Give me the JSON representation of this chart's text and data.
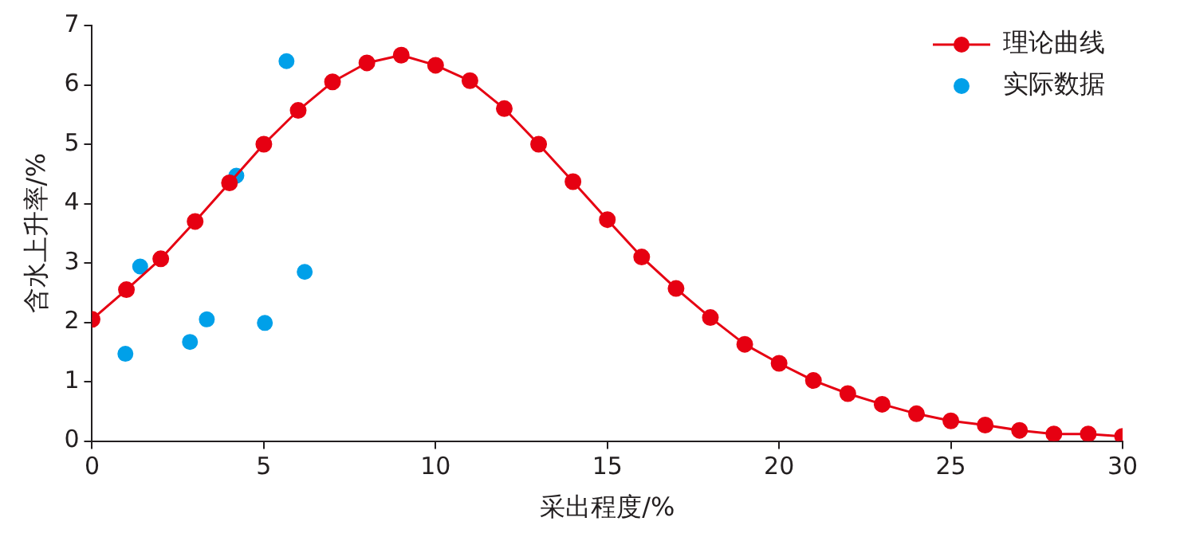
{
  "chart_data": {
    "type": "line",
    "xlabel": "采出程度/%",
    "ylabel": "含水上升率/%",
    "xlim": [
      0,
      30
    ],
    "ylim": [
      0,
      7
    ],
    "xticks": [
      0,
      5,
      10,
      15,
      20,
      25,
      30
    ],
    "yticks": [
      0,
      1,
      2,
      3,
      4,
      5,
      6,
      7
    ],
    "grid": false,
    "legend": "top right",
    "marker": "circle",
    "series": [
      {
        "name": "理论曲线",
        "line_style": "solid",
        "color": "#e60012",
        "x": [
          0,
          1,
          2,
          3,
          4,
          5,
          6,
          7,
          8,
          9,
          10,
          11,
          12,
          13,
          14,
          15,
          16,
          17,
          18,
          19,
          20,
          21,
          22,
          23,
          24,
          25,
          26,
          27,
          28,
          29,
          30
        ],
        "values": [
          2.05,
          2.55,
          3.07,
          3.7,
          4.35,
          5.0,
          5.57,
          6.05,
          6.37,
          6.5,
          6.33,
          6.07,
          5.6,
          5.0,
          4.37,
          3.73,
          3.1,
          2.57,
          2.08,
          1.63,
          1.31,
          1.02,
          0.8,
          0.62,
          0.46,
          0.34,
          0.27,
          0.18,
          0.12,
          0.12,
          0.08
        ]
      },
      {
        "name": "实际数据",
        "type": "scatter",
        "color": "#00a0e9",
        "x": [
          0.97,
          1.4,
          2.85,
          3.34,
          4.2,
          5.03,
          5.66,
          6.19
        ],
        "values": [
          1.47,
          2.94,
          1.67,
          2.05,
          4.47,
          1.99,
          6.4,
          2.85
        ]
      }
    ]
  }
}
